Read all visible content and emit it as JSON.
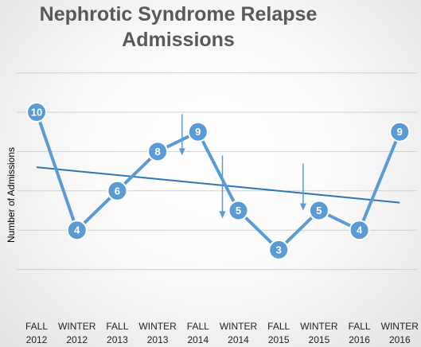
{
  "chart_data": {
    "type": "line",
    "title_lines": [
      "Nephrotic Syndrome Relapse",
      "Admissions"
    ],
    "ylabel": "Number of Admissions",
    "xlabel": "",
    "categories": [
      [
        "FALL",
        "2012"
      ],
      [
        "WINTER",
        "2012"
      ],
      [
        "FALL",
        "2013"
      ],
      [
        "WINTER",
        "2013"
      ],
      [
        "FALL",
        "2014"
      ],
      [
        "WINTER",
        "2014"
      ],
      [
        "FALL",
        "2015"
      ],
      [
        "WINTER",
        "2015"
      ],
      [
        "FALL",
        "2016"
      ],
      [
        "WINTER",
        "2016"
      ]
    ],
    "series": [
      {
        "values": [
          10,
          4,
          6,
          8,
          9,
          5,
          3,
          5,
          4,
          9
        ]
      }
    ],
    "trendline": {
      "type": "linear"
    },
    "ylim": [
      0,
      12
    ],
    "grid": true,
    "arrow_markers_at_category": [
      4,
      5,
      7
    ],
    "colors": {
      "line": "#5b9bd5",
      "marker_fill": "#5b9bd5",
      "marker_stroke": "#ffffff",
      "trend": "#2e75b6",
      "arrow": "#5b9bd5",
      "grid": "#d0d0d0",
      "title": "#595959"
    }
  }
}
